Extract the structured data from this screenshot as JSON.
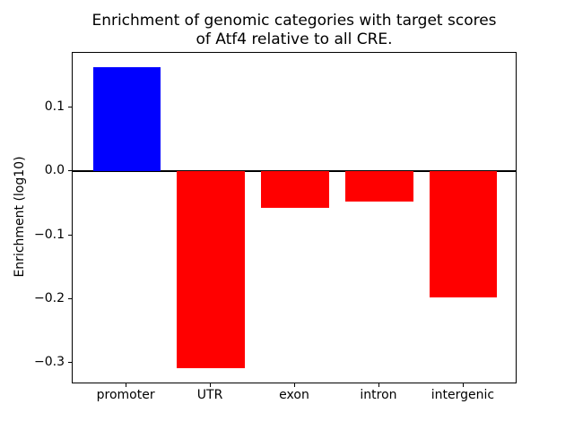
{
  "chart_data": {
    "type": "bar",
    "title_line1": "Enrichment of genomic categories with target scores",
    "title_line2": "of Atf4 relative to all CRE.",
    "ylabel": "Enrichment (log10)",
    "xlabel": "",
    "categories": [
      "promoter",
      "UTR",
      "exon",
      "intron",
      "intergenic"
    ],
    "values": [
      0.163,
      -0.308,
      -0.057,
      -0.047,
      -0.197
    ],
    "bar_colors": [
      "#0000ff",
      "#ff0000",
      "#ff0000",
      "#ff0000",
      "#ff0000"
    ],
    "positive_color": "#0000ff",
    "negative_color": "#ff0000",
    "zero_line": true,
    "grid": false,
    "legend": "none",
    "ylim": [
      -0.333,
      0.185
    ],
    "xlim": [
      -0.64,
      4.64
    ],
    "bar_width": 0.8,
    "yticks": [
      {
        "value": 0.1,
        "label": "0.1"
      },
      {
        "value": 0.0,
        "label": "0.0"
      },
      {
        "value": -0.1,
        "label": "−0.1"
      },
      {
        "value": -0.2,
        "label": "−0.2"
      },
      {
        "value": -0.3,
        "label": "−0.3"
      }
    ]
  }
}
